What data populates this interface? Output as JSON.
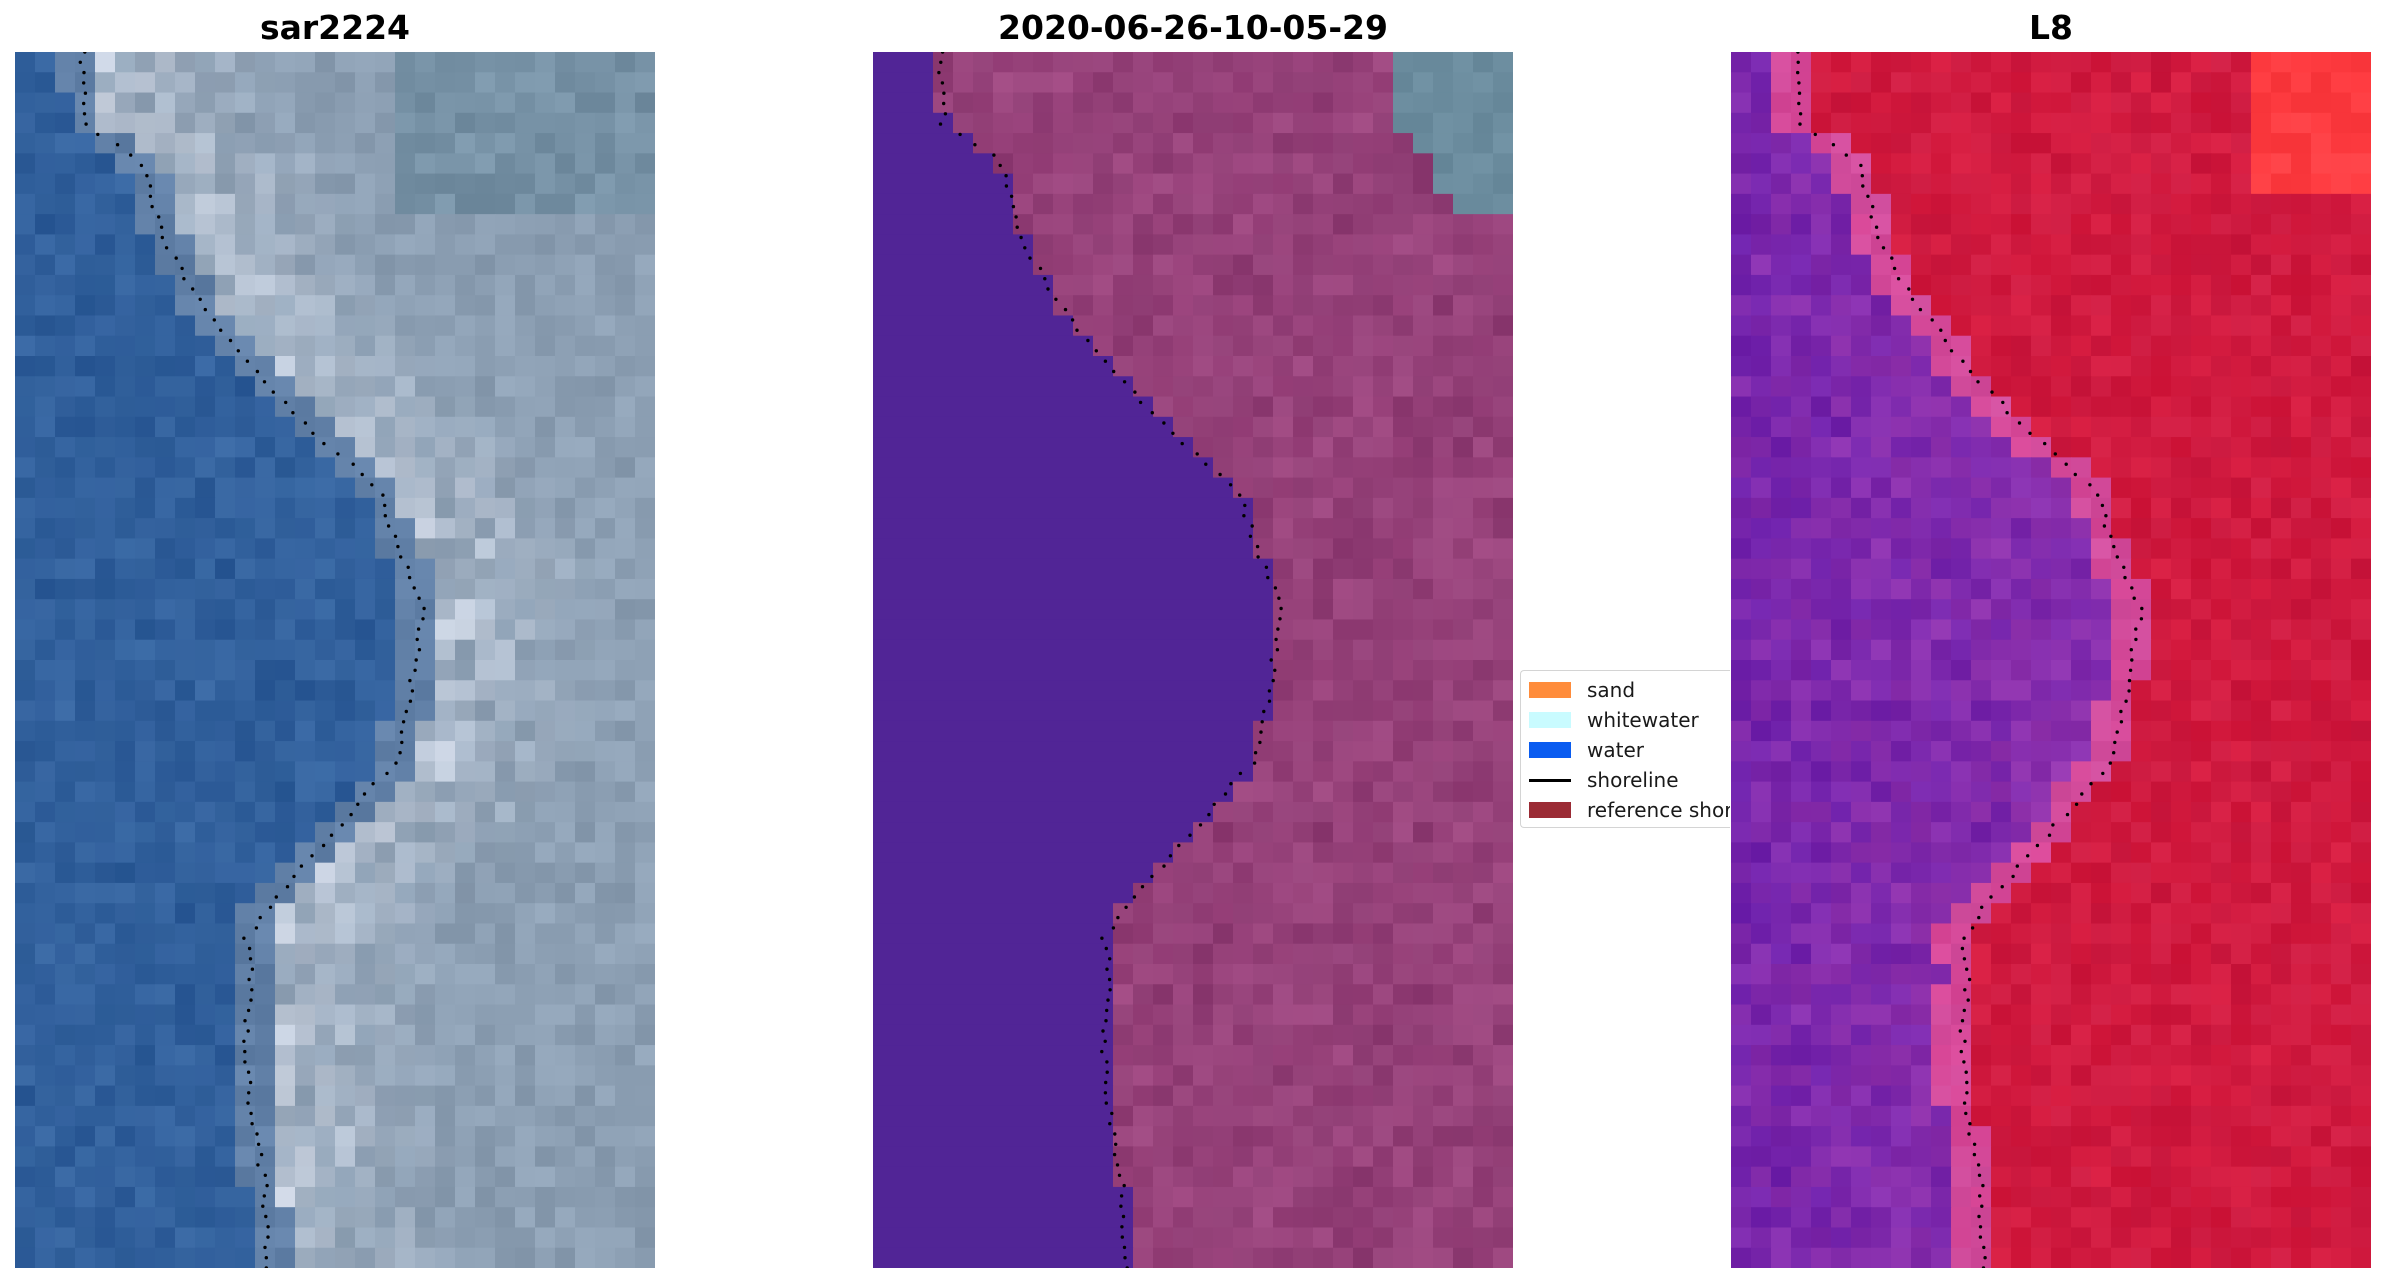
{
  "panels": [
    {
      "title": "sar2224",
      "kind": "rgb"
    },
    {
      "title": "2020-06-26-10-05-29",
      "kind": "classified"
    },
    {
      "title": "L8",
      "kind": "index"
    }
  ],
  "legend": {
    "items": [
      {
        "label": "sand",
        "type": "patch",
        "color": "#ff8c3b"
      },
      {
        "label": "whitewater",
        "type": "patch",
        "color": "#c9fbff"
      },
      {
        "label": "water",
        "type": "patch",
        "color": "#0a5cf0"
      },
      {
        "label": "shoreline",
        "type": "line",
        "color": "#000000"
      },
      {
        "label": "reference shoreline",
        "type": "patch",
        "color": "#9b2b35"
      }
    ]
  },
  "colors": {
    "water_rgb": "#2d5b98",
    "land_rgb": "#8c9fb3",
    "water_class": "#512596",
    "land_class": "#8e3c73",
    "sea_tint_class": "#6b8c9e",
    "index_low": "#6a1eaa",
    "index_high": "#cc1a40",
    "shoreline_dots": "#000000"
  },
  "shoreline_profile": [
    [
      0,
      0.105
    ],
    [
      0.06,
      0.11
    ],
    [
      0.09,
      0.2
    ],
    [
      0.15,
      0.23
    ],
    [
      0.2,
      0.28
    ],
    [
      0.26,
      0.37
    ],
    [
      0.31,
      0.46
    ],
    [
      0.36,
      0.57
    ],
    [
      0.41,
      0.6
    ],
    [
      0.46,
      0.64
    ],
    [
      0.52,
      0.62
    ],
    [
      0.58,
      0.6
    ],
    [
      0.64,
      0.5
    ],
    [
      0.7,
      0.4
    ],
    [
      0.73,
      0.36
    ],
    [
      0.76,
      0.37
    ],
    [
      0.82,
      0.36
    ],
    [
      0.88,
      0.37
    ],
    [
      0.93,
      0.39
    ],
    [
      1.0,
      0.395
    ]
  ]
}
